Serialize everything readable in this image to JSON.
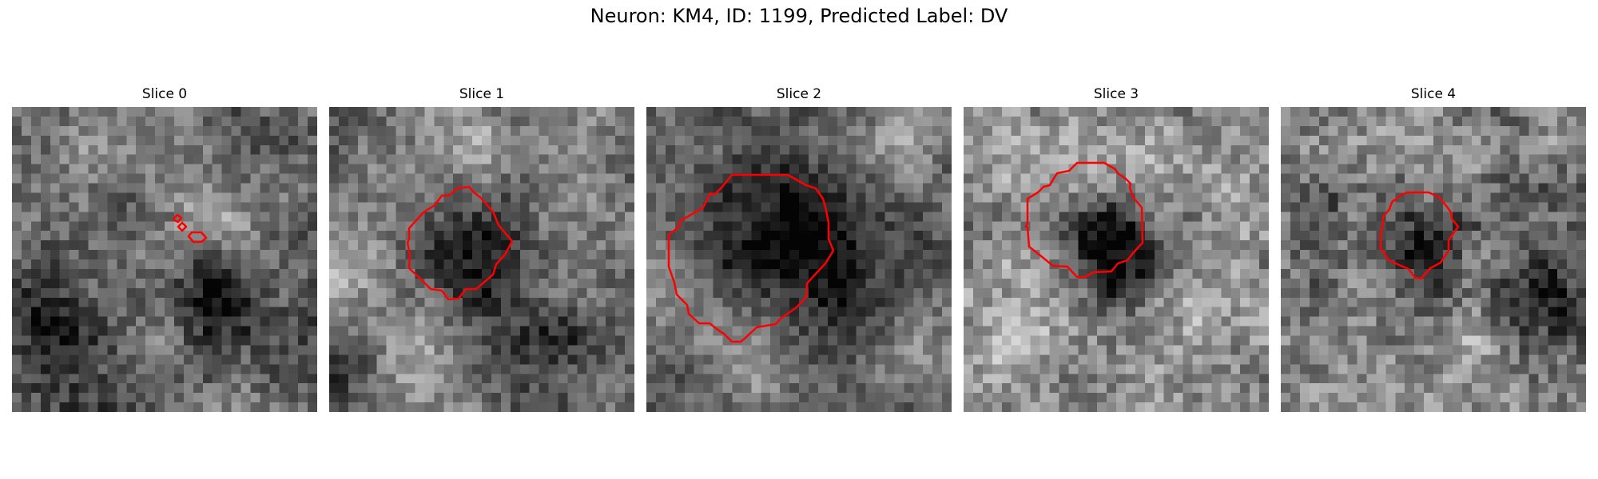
{
  "figure": {
    "title": "Neuron: KM4, ID: 1199, Predicted Label: DV",
    "contour_color": "#ff0000",
    "colormap": "gray",
    "panels": [
      {
        "title": "Slice 0"
      },
      {
        "title": "Slice 1"
      },
      {
        "title": "Slice 2"
      },
      {
        "title": "Slice 3"
      },
      {
        "title": "Slice 4"
      }
    ]
  }
}
